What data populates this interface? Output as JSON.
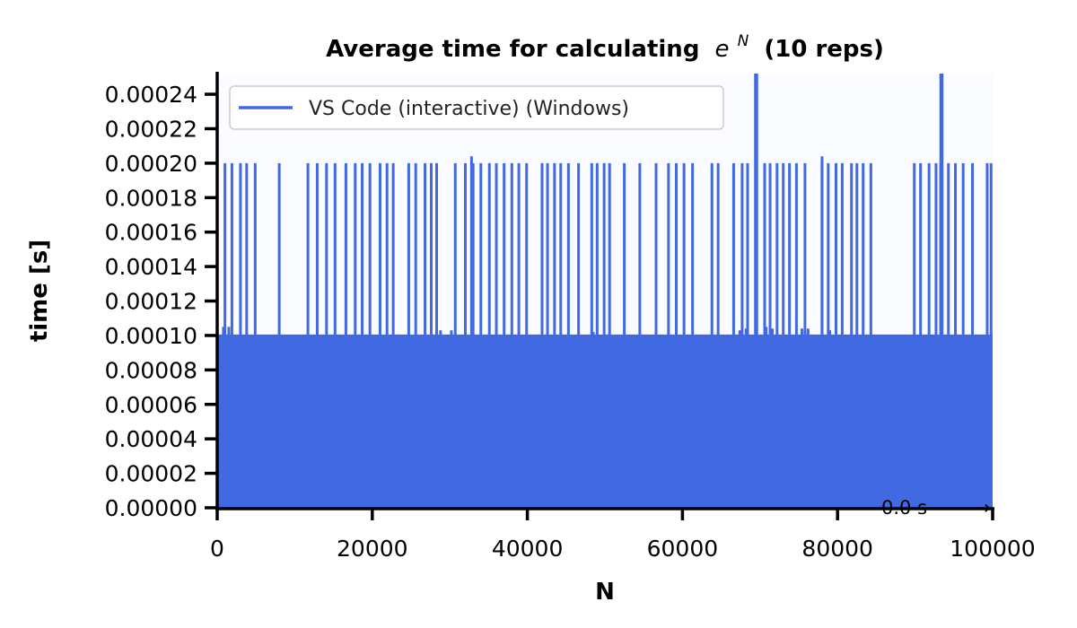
{
  "chart_data": {
    "type": "line",
    "title": "Average time for calculating",
    "title_math_base": "e",
    "title_math_sup": "N",
    "title_suffix": "(10 reps)",
    "xlabel": "N",
    "ylabel": "time [s]",
    "xlim": [
      0,
      100000
    ],
    "ylim": [
      0,
      0.000252
    ],
    "x_ticks": [
      0,
      20000,
      40000,
      60000,
      80000,
      100000
    ],
    "x_tick_labels": [
      "0",
      "20000",
      "40000",
      "60000",
      "80000",
      "100000"
    ],
    "y_ticks": [
      0,
      2e-05,
      4e-05,
      6e-05,
      8e-05,
      0.0001,
      0.00012,
      0.00014,
      0.00016,
      0.00018,
      0.0002,
      0.00022,
      0.00024
    ],
    "y_tick_labels": [
      "0.00000",
      "0.00002",
      "0.00004",
      "0.00006",
      "0.00008",
      "0.00010",
      "0.00012",
      "0.00014",
      "0.00016",
      "0.00018",
      "0.00020",
      "0.00022",
      "0.00024"
    ],
    "grid": false,
    "legend_position": "top-left",
    "series": [
      {
        "name": "VS Code (interactive) (Windows)",
        "color": "#4169e1",
        "baseline_level": 0.0001,
        "spike_level": 0.0002,
        "spikes_x": [
          1000,
          1900,
          3000,
          3800,
          4900,
          8000,
          11700,
          12900,
          14100,
          15200,
          16600,
          17800,
          18700,
          19700,
          21000,
          21900,
          22700,
          24700,
          25600,
          26800,
          27600,
          28300,
          30700,
          32000,
          33000,
          34000,
          35100,
          36000,
          37000,
          38000,
          38900,
          39900,
          41900,
          42600,
          43500,
          44300,
          45300,
          46600,
          48300,
          49000,
          49900,
          50600,
          52500,
          54500,
          56600,
          58200,
          59200,
          60200,
          61300,
          63800,
          64600,
          66600,
          67700,
          68400,
          69500,
          70600,
          71300,
          72200,
          73000,
          73800,
          74700,
          75800,
          78000,
          78800,
          79800,
          80600,
          81800,
          82500,
          83300,
          84300,
          89900,
          90700,
          91800,
          92700,
          93300,
          94300,
          95200,
          96200,
          97400,
          99300,
          99800
        ],
        "large_spikes": [
          {
            "x": 69500,
            "y": 0.000252
          },
          {
            "x": 93400,
            "y": 0.000252
          }
        ],
        "small_bumps": [
          {
            "x": 800,
            "y": 0.000105
          },
          {
            "x": 1500,
            "y": 0.000105
          },
          {
            "x": 28800,
            "y": 0.000103
          },
          {
            "x": 30200,
            "y": 0.000103
          },
          {
            "x": 32800,
            "y": 0.000204
          },
          {
            "x": 48500,
            "y": 0.000102
          },
          {
            "x": 67400,
            "y": 0.000103
          },
          {
            "x": 68200,
            "y": 0.000104
          },
          {
            "x": 70800,
            "y": 0.000105
          },
          {
            "x": 71600,
            "y": 0.000104
          },
          {
            "x": 75400,
            "y": 0.000104
          },
          {
            "x": 76200,
            "y": 0.000104
          },
          {
            "x": 78000,
            "y": 0.000204
          },
          {
            "x": 79000,
            "y": 0.000103
          }
        ]
      }
    ],
    "annotation": {
      "text": "0.0 s",
      "x": 85000,
      "y": 0,
      "arrow": "→"
    }
  }
}
